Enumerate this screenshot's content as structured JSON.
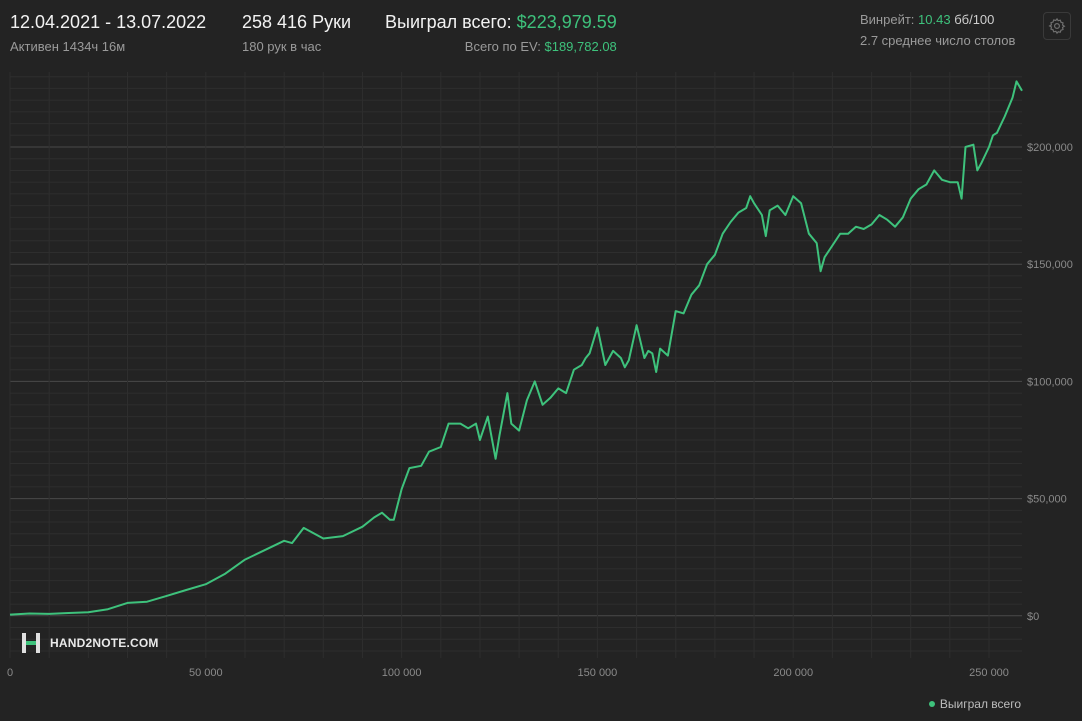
{
  "header": {
    "date_range": "12.04.2021 - 13.07.2022",
    "active": "Активен 1434ч 16м",
    "hands": "258 416 Руки",
    "hands_per_hour": "180 рук в час",
    "won_label": "Выиграл всего:",
    "won_value": "$223,979.59",
    "ev_label": "Всего по EV:",
    "ev_value": "$189,782.08",
    "winrate_label": "Винрейт:",
    "winrate_value": "10.43",
    "winrate_unit": "бб/100",
    "avg_tables": "2.7 среднее число столов"
  },
  "logo": {
    "text": "HAND2NOTE.COM"
  },
  "colors": {
    "line": "#3ec27c",
    "background": "#232323",
    "grid": "#2e2e2e",
    "major_grid": "#4a4a4a"
  },
  "chart_data": {
    "type": "line",
    "x_ticks": [
      0,
      50000,
      100000,
      150000,
      200000,
      250000
    ],
    "x_tick_labels": [
      "0",
      "50 000",
      "100 000",
      "150 000",
      "200 000",
      "250 000"
    ],
    "y_ticks": [
      0,
      50000,
      100000,
      150000,
      200000
    ],
    "y_tick_labels": [
      "$0",
      "$50,000",
      "$100,000",
      "$150,000",
      "$200,000"
    ],
    "xlim": [
      0,
      258416
    ],
    "ylim": [
      -18000,
      232000
    ],
    "grid": true,
    "legend_position": "bottom-right",
    "series": [
      {
        "name": "Выиграл всего",
        "color": "#3ec27c",
        "x": [
          0,
          5000,
          10000,
          15000,
          20000,
          25000,
          30000,
          35000,
          40000,
          45000,
          50000,
          55000,
          60000,
          65000,
          70000,
          72000,
          75000,
          80000,
          85000,
          90000,
          93000,
          95000,
          97000,
          98000,
          100000,
          102000,
          105000,
          107000,
          110000,
          112000,
          115000,
          117000,
          119000,
          120000,
          122000,
          124000,
          125000,
          127000,
          128000,
          130000,
          132000,
          134000,
          136000,
          138000,
          140000,
          142000,
          144000,
          146000,
          147000,
          148000,
          150000,
          152000,
          154000,
          156000,
          157000,
          158000,
          160000,
          162000,
          163000,
          164000,
          165000,
          166000,
          168000,
          170000,
          172000,
          174000,
          176000,
          178000,
          180000,
          182000,
          184000,
          186000,
          188000,
          189000,
          190000,
          192000,
          193000,
          194000,
          196000,
          198000,
          200000,
          202000,
          204000,
          206000,
          207000,
          208000,
          210000,
          212000,
          214000,
          216000,
          218000,
          220000,
          222000,
          224000,
          226000,
          228000,
          230000,
          232000,
          234000,
          236000,
          238000,
          240000,
          242000,
          243000,
          244000,
          246000,
          247000,
          248000,
          250000,
          251000,
          252000,
          254000,
          256000,
          257000,
          258416
        ],
        "y": [
          500,
          1000,
          800,
          1200,
          1500,
          2800,
          5500,
          6000,
          8500,
          11000,
          13500,
          18000,
          24000,
          28000,
          32000,
          31000,
          37500,
          33000,
          34000,
          38000,
          42000,
          44000,
          41000,
          41000,
          54000,
          63000,
          64000,
          70000,
          72000,
          82000,
          82000,
          80000,
          82000,
          75000,
          85000,
          67000,
          77000,
          95000,
          82000,
          79000,
          92000,
          100000,
          90000,
          93000,
          97000,
          95000,
          105000,
          107000,
          110000,
          112000,
          123000,
          107000,
          113000,
          110000,
          106000,
          109000,
          124000,
          110000,
          113000,
          112000,
          104000,
          114000,
          111000,
          130000,
          129000,
          137000,
          141000,
          150000,
          154000,
          163000,
          168000,
          172000,
          174000,
          179000,
          176000,
          171000,
          162000,
          173000,
          175000,
          171000,
          179000,
          176000,
          163000,
          159000,
          147000,
          153000,
          158000,
          163000,
          163000,
          166000,
          165000,
          167000,
          171000,
          169000,
          166000,
          170000,
          178000,
          182000,
          184000,
          190000,
          186000,
          185000,
          185000,
          178000,
          200000,
          201000,
          190000,
          193000,
          200000,
          205000,
          206000,
          213000,
          221000,
          228000,
          223980
        ]
      }
    ]
  }
}
